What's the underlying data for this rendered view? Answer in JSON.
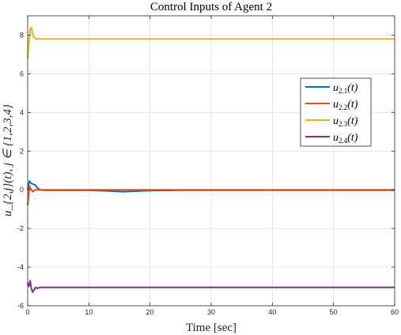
{
  "chart_data": {
    "type": "line",
    "title": "Control Inputs of Agent 2",
    "xlabel": "Time [sec]",
    "ylabel": "u_{2,j}(t), j ∈ {1,2,3,4}",
    "xlim": [
      0,
      60
    ],
    "ylim": [
      -6,
      9
    ],
    "xticks": [
      0,
      10,
      20,
      30,
      40,
      50,
      60
    ],
    "yticks": [
      -6,
      -4,
      -2,
      0,
      2,
      4,
      6,
      8
    ],
    "xtick_labels": [
      "0",
      "10",
      "20",
      "30",
      "40",
      "50",
      "60"
    ],
    "ytick_labels": [
      "-6",
      "-4",
      "-2",
      "0",
      "2",
      "4",
      "6",
      "8"
    ],
    "grid": true,
    "legend_position": "right",
    "series": [
      {
        "name": "u_{2,1}(t)",
        "color": "#0072BD",
        "x": [
          0,
          0.15,
          0.3,
          0.5,
          0.8,
          1.2,
          1.6,
          2.0,
          2.5,
          3,
          10,
          12.3,
          15.5,
          19.5,
          25.5,
          30,
          40,
          50,
          60
        ],
        "y": [
          0.0,
          0.3,
          0.45,
          0.35,
          0.3,
          0.25,
          0.1,
          0.0,
          -0.02,
          -0.03,
          -0.03,
          -0.05,
          -0.1,
          -0.05,
          -0.02,
          -0.02,
          -0.02,
          -0.02,
          -0.02
        ]
      },
      {
        "name": "u_{2,2}(t)",
        "color": "#D95319",
        "x": [
          0,
          0.15,
          0.3,
          0.5,
          0.8,
          1.2,
          2.0,
          3,
          10,
          20,
          30,
          40,
          50,
          60
        ],
        "y": [
          -0.8,
          -0.3,
          0.2,
          0.05,
          -0.1,
          0.0,
          0.0,
          0.0,
          0.0,
          0.0,
          0.0,
          0.0,
          0.0,
          0.0
        ]
      },
      {
        "name": "u_{2,3}(t)",
        "color": "#EDB120",
        "x": [
          0,
          0.2,
          0.4,
          0.6,
          0.8,
          1.0,
          1.3,
          1.6,
          2.0,
          3,
          10,
          20,
          30,
          40,
          50,
          60
        ],
        "y": [
          6.8,
          7.6,
          8.3,
          8.4,
          8.1,
          7.9,
          7.8,
          7.82,
          7.8,
          7.8,
          7.8,
          7.8,
          7.8,
          7.8,
          7.8,
          7.8
        ]
      },
      {
        "name": "u_{2,4}(t)",
        "color": "#7E2F8E",
        "x": [
          0,
          0.2,
          0.4,
          0.6,
          0.8,
          1.0,
          1.3,
          1.6,
          2.0,
          3,
          10,
          20,
          30,
          40,
          50,
          60
        ],
        "y": [
          -4.8,
          -5.0,
          -4.7,
          -5.1,
          -5.3,
          -5.2,
          -5.05,
          -5.1,
          -5.05,
          -5.05,
          -5.05,
          -5.05,
          -5.05,
          -5.05,
          -5.05,
          -5.05
        ]
      }
    ]
  }
}
